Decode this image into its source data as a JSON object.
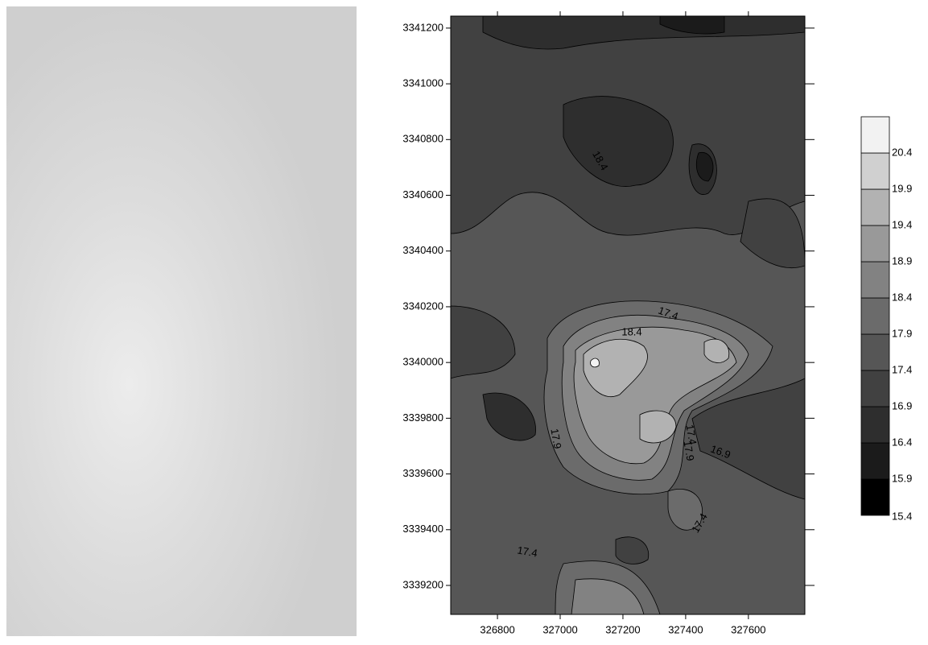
{
  "chart_data": {
    "type": "contour",
    "xlim": [
      326651,
      327780
    ],
    "ylim": [
      3339096,
      3341243
    ],
    "xticks": [
      326800,
      327000,
      327200,
      327400,
      327600
    ],
    "yticks": [
      3339200,
      3339400,
      3339600,
      3339800,
      3340000,
      3340200,
      3340400,
      3340600,
      3340800,
      3341000,
      3341200
    ],
    "levels": [
      15.4,
      15.9,
      16.4,
      16.9,
      17.4,
      17.9,
      18.4,
      18.9,
      19.4,
      19.9,
      20.4
    ],
    "colors": [
      "#000000",
      "#1b1b1b",
      "#2e2e2e",
      "#414141",
      "#565656",
      "#6b6b6b",
      "#828282",
      "#999999",
      "#b2b2b2",
      "#d0d0d0",
      "#f2f2f2"
    ],
    "contour_labels": [
      "18.4",
      "17.4",
      "18.4",
      "17.9",
      "17.4",
      "16.9",
      "17.9",
      "17.4",
      "17.4"
    ]
  }
}
